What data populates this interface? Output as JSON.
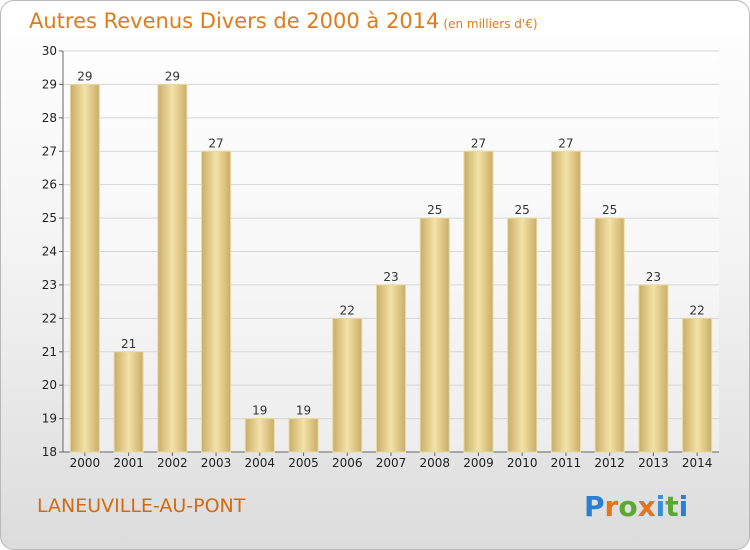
{
  "header": {
    "title": "Autres Revenus Divers de 2000 à 2014",
    "unit": "(en milliers d'€)"
  },
  "footer": {
    "commune": "LANEUVILLE-AU-PONT",
    "logo_text": "Proxiti"
  },
  "colors": {
    "title": "#e07b1a",
    "bar_light": "#f4e2a6",
    "bar_dark": "#c9ad68",
    "logo": [
      "#2a7fd4",
      "#e8731a",
      "#5aa832",
      "#e8731a",
      "#3a8fd8",
      "#5aa832",
      "#2a7fd4"
    ]
  },
  "chart_data": {
    "type": "bar",
    "categories": [
      "2000",
      "2001",
      "2002",
      "2003",
      "2004",
      "2005",
      "2006",
      "2007",
      "2008",
      "2009",
      "2010",
      "2011",
      "2012",
      "2013",
      "2014"
    ],
    "values": [
      29,
      21,
      29,
      27,
      19,
      19,
      22,
      23,
      25,
      27,
      25,
      27,
      25,
      23,
      22
    ],
    "ylim": [
      18,
      30
    ],
    "yticks": [
      18,
      19,
      20,
      21,
      22,
      23,
      24,
      25,
      26,
      27,
      28,
      29,
      30
    ],
    "grid": true,
    "data_labels": true
  }
}
